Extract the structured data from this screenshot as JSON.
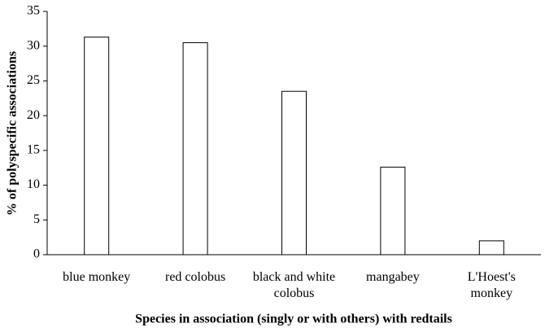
{
  "chart_data": {
    "type": "bar",
    "x_label": "Species in association (singly or with others) with redtails",
    "y_label": "% of polyspecific associations",
    "categories": [
      "blue monkey",
      "red colobus",
      "black and white colobus",
      "mangabey",
      "L'Hoest's monkey"
    ],
    "values": [
      31.3,
      30.5,
      23.5,
      12.6,
      2.0
    ],
    "color": "#ffffff",
    "ylim": [
      0,
      35
    ],
    "yticks": [
      0,
      5,
      10,
      15,
      20,
      25,
      30,
      35
    ],
    "grid": false
  }
}
